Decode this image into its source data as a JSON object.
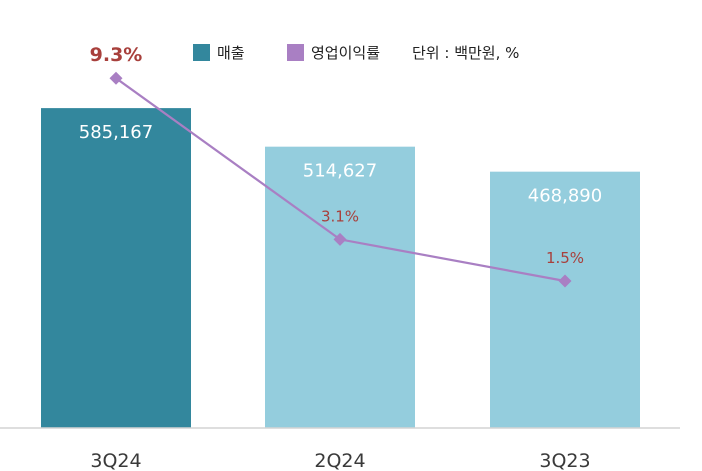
{
  "chart_data": {
    "type": "bar",
    "categories": [
      "3Q24",
      "2Q24",
      "3Q23"
    ],
    "series": [
      {
        "name": "매출",
        "type": "bar",
        "values": [
          585167,
          514627,
          468890
        ],
        "labels": [
          "585,167",
          "514,627",
          "468,890"
        ],
        "colors": [
          "#33879d",
          "#94cddd",
          "#94cddd"
        ]
      },
      {
        "name": "영업이익률",
        "type": "line",
        "values": [
          9.3,
          3.1,
          1.5
        ],
        "labels": [
          "9.3%",
          "3.1%",
          "1.5%"
        ],
        "color": "#a97fc3"
      }
    ],
    "legend": {
      "items": [
        {
          "name": "매출",
          "color": "#33879d"
        },
        {
          "name": "영업이익률",
          "color": "#a97fc3"
        }
      ],
      "unit": "단위 : 백만원, %",
      "position": "top-center"
    },
    "ylim_bar": [
      0,
      600000
    ],
    "ylim_line": [
      0,
      10
    ],
    "grid": false,
    "label_color": "#a8403c",
    "axis_color": "#d4d4d4"
  }
}
